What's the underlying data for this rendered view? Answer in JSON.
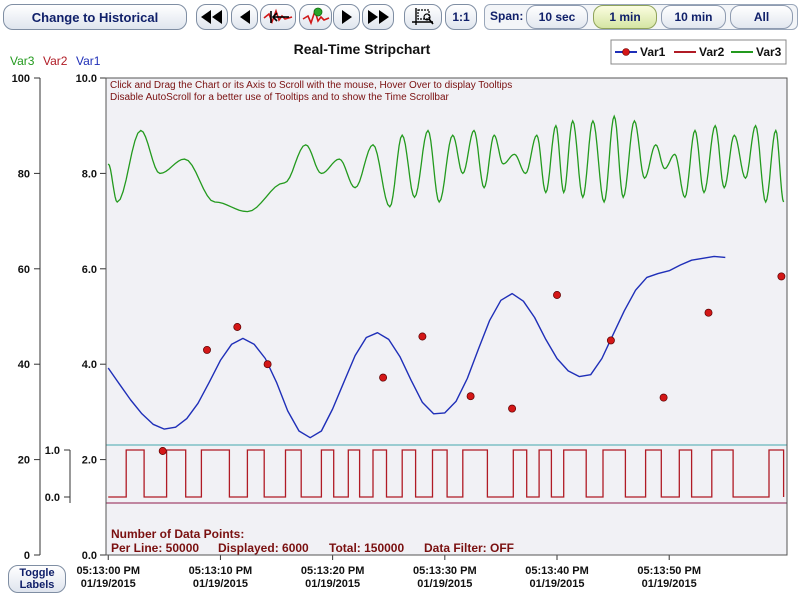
{
  "toolbar": {
    "historical_label": "Change to Historical",
    "ratio_label": "1:1",
    "span_label": "Span:",
    "span_options": [
      "10 sec",
      "1 min",
      "10 min",
      "All"
    ],
    "active_span": "1 min",
    "icons": [
      "fast-rewind-icon",
      "rewind-icon",
      "jump-to-start-icon",
      "jump-to-live-icon",
      "play-icon",
      "fast-forward-icon",
      "zoom-box-icon"
    ]
  },
  "toggle_labels": "Toggle\nLabels",
  "chart_data": {
    "type": "line",
    "title": "Real-Time Stripchart",
    "legend": [
      "Var1",
      "Var2",
      "Var3"
    ],
    "legend_placement": "top-right",
    "grid": false,
    "colors": {
      "var1": "#1f2fb8",
      "var2": "#b01b25",
      "var3": "#239a1e",
      "markers": "#d41717",
      "plot_bg": "#f1f1f5"
    },
    "axis_labels": {
      "var3": "Var3",
      "var2": "Var2",
      "var1": "Var1"
    },
    "left_axis": {
      "ticks": [
        "100",
        "80",
        "60",
        "40",
        "20",
        "0"
      ],
      "range": [
        0,
        100
      ]
    },
    "var2_axis": {
      "ticks": [
        "1.0",
        "0.0"
      ],
      "range": [
        0,
        1
      ]
    },
    "var1_axis": {
      "ticks": [
        "10.0",
        "8.0",
        "6.0",
        "4.0",
        "2.0",
        "0.0"
      ],
      "range": [
        0,
        10
      ]
    },
    "x_ticks": [
      {
        "time": "05:13:00 PM",
        "date": "01/19/2015"
      },
      {
        "time": "05:13:10 PM",
        "date": "01/19/2015"
      },
      {
        "time": "05:13:20 PM",
        "date": "01/19/2015"
      },
      {
        "time": "05:13:30 PM",
        "date": "01/19/2015"
      },
      {
        "time": "05:13:40 PM",
        "date": "01/19/2015"
      },
      {
        "time": "05:13:50 PM",
        "date": "01/19/2015"
      }
    ],
    "x_range_seconds": [
      -0.2,
      60.5
    ],
    "instructions": [
      "Click and Drag the Chart or its Axis to Scroll with the mouse, Hover Over to display Tooltips",
      "Disable AutoScroll for a better use of Tooltips and to show the Time Scrollbar"
    ],
    "stats": {
      "heading": "Number of Data Points:",
      "per_line": "Per Line: 50000",
      "displayed": "Displayed: 6000",
      "total": "Total: 150000",
      "filter": "Data Filter: OFF"
    },
    "var1_points": [
      [
        0,
        3.92
      ],
      [
        1,
        3.58
      ],
      [
        2,
        3.25
      ],
      [
        3,
        2.96
      ],
      [
        4,
        2.74
      ],
      [
        5,
        2.64
      ],
      [
        6,
        2.68
      ],
      [
        7,
        2.86
      ],
      [
        8,
        3.18
      ],
      [
        9,
        3.62
      ],
      [
        10,
        4.08
      ],
      [
        11,
        4.42
      ],
      [
        12,
        4.54
      ],
      [
        13,
        4.42
      ],
      [
        14,
        4.12
      ],
      [
        15,
        3.62
      ],
      [
        16,
        3.02
      ],
      [
        17,
        2.6
      ],
      [
        18,
        2.46
      ],
      [
        19,
        2.6
      ],
      [
        20,
        3.06
      ],
      [
        21,
        3.62
      ],
      [
        22,
        4.18
      ],
      [
        23,
        4.56
      ],
      [
        24,
        4.66
      ],
      [
        25,
        4.52
      ],
      [
        26,
        4.16
      ],
      [
        27,
        3.66
      ],
      [
        28,
        3.2
      ],
      [
        29,
        2.96
      ],
      [
        30,
        2.98
      ],
      [
        31,
        3.22
      ],
      [
        32,
        3.7
      ],
      [
        33,
        4.32
      ],
      [
        34,
        4.92
      ],
      [
        35,
        5.34
      ],
      [
        36,
        5.48
      ],
      [
        37,
        5.32
      ],
      [
        38,
        4.98
      ],
      [
        39,
        4.52
      ],
      [
        40,
        4.12
      ],
      [
        41,
        3.86
      ],
      [
        42,
        3.74
      ],
      [
        43,
        3.78
      ],
      [
        44,
        4.12
      ],
      [
        45,
        4.62
      ],
      [
        46,
        5.12
      ],
      [
        47,
        5.55
      ],
      [
        48,
        5.82
      ],
      [
        49,
        5.9
      ],
      [
        50,
        5.96
      ],
      [
        51,
        6.08
      ],
      [
        52,
        6.18
      ],
      [
        53,
        6.22
      ],
      [
        54,
        6.26
      ],
      [
        55,
        6.24
      ]
    ],
    "var1_markers": [
      [
        4.85,
        2.18
      ],
      [
        8.8,
        4.3
      ],
      [
        11.5,
        4.78
      ],
      [
        14.2,
        4.0
      ],
      [
        24.5,
        3.72
      ],
      [
        28,
        4.58
      ],
      [
        32.3,
        3.33
      ],
      [
        36,
        3.07
      ],
      [
        40,
        5.45
      ],
      [
        44.8,
        4.5
      ],
      [
        49.5,
        3.3
      ],
      [
        53.5,
        5.08
      ],
      [
        60,
        5.84
      ]
    ],
    "var2_edges": [
      0,
      1.6,
      3.2,
      5.2,
      6.9,
      8.3,
      10.8,
      12.4,
      13.9,
      15.8,
      17.2,
      19.0,
      20.1,
      21.4,
      22.4,
      23.6,
      24.8,
      26.2,
      27.4,
      28.9,
      30.2,
      31.6,
      33.8,
      36.1,
      37.3,
      38.4,
      39.5,
      40.6,
      42.6,
      44.1,
      46.1,
      47.9,
      49.3,
      50.9,
      52.0,
      53.8,
      55.7,
      58.9,
      60.2
    ],
    "var3_peaks": [
      [
        0,
        82
      ],
      [
        0.8,
        74
      ],
      [
        2.9,
        89
      ],
      [
        4.6,
        80
      ],
      [
        6.8,
        83
      ],
      [
        9.5,
        74
      ],
      [
        12.4,
        72
      ],
      [
        15.7,
        78
      ],
      [
        17.6,
        86
      ],
      [
        19.0,
        80
      ],
      [
        20.6,
        83
      ],
      [
        22.0,
        77
      ],
      [
        23.6,
        86
      ],
      [
        25.1,
        73
      ],
      [
        26.2,
        88
      ],
      [
        27.3,
        75
      ],
      [
        28.5,
        89
      ],
      [
        29.5,
        74
      ],
      [
        30.7,
        88
      ],
      [
        31.6,
        80
      ],
      [
        32.6,
        89
      ],
      [
        33.5,
        77
      ],
      [
        34.4,
        88
      ],
      [
        35.2,
        82
      ],
      [
        36.2,
        84
      ],
      [
        37.2,
        80
      ],
      [
        38.2,
        88
      ],
      [
        39.0,
        76
      ],
      [
        39.9,
        90
      ],
      [
        40.6,
        76
      ],
      [
        41.4,
        91
      ],
      [
        42.3,
        75
      ],
      [
        43.2,
        91
      ],
      [
        44.2,
        74
      ],
      [
        45.1,
        92
      ],
      [
        45.9,
        75
      ],
      [
        46.9,
        91
      ],
      [
        47.8,
        79
      ],
      [
        48.8,
        86
      ],
      [
        49.6,
        81
      ],
      [
        50.5,
        84
      ],
      [
        51.4,
        75
      ],
      [
        52.3,
        89
      ],
      [
        53.1,
        76
      ],
      [
        54.1,
        90
      ],
      [
        54.9,
        77
      ],
      [
        55.8,
        88
      ],
      [
        56.8,
        79
      ],
      [
        57.7,
        90
      ],
      [
        58.6,
        74
      ],
      [
        59.5,
        89
      ],
      [
        60.2,
        74
      ]
    ]
  }
}
